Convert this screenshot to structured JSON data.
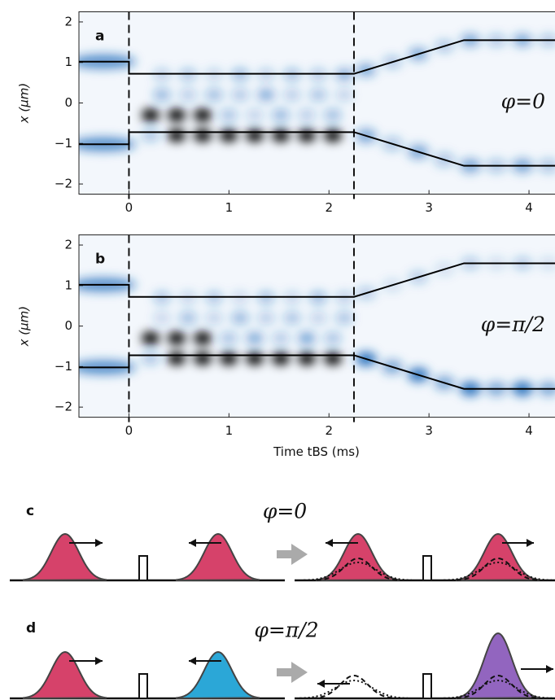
{
  "chart_data": [
    {
      "type": "line",
      "panel_label": "a",
      "annotation": "φ=0",
      "ylabel": "x (μm)",
      "x": [
        -0.5,
        0,
        0,
        2.25,
        3.35,
        4.26
      ],
      "series": [
        {
          "color": "#000000",
          "values": [
            1.02,
            1.02,
            0.72,
            0.72,
            1.55,
            1.55
          ]
        },
        {
          "color": "#000000",
          "values": [
            -1.02,
            -1.02,
            -0.72,
            -0.72,
            -1.55,
            -1.55
          ]
        }
      ],
      "vlines": [
        0,
        2.25
      ],
      "xlim": [
        -0.5,
        4.26
      ],
      "ylim": [
        -2.25,
        2.25
      ],
      "xticks": [
        0,
        1,
        2,
        3,
        4
      ],
      "yticks": [
        {
          "value": -2,
          "label": "−2"
        },
        {
          "value": -1,
          "label": "−1"
        },
        0,
        1,
        2
      ]
    },
    {
      "type": "line",
      "panel_label": "b",
      "annotation": "φ=π/2",
      "ylabel": "x (μm)",
      "xlabel": "Time tBS (ms)",
      "x": [
        -0.5,
        0,
        0,
        2.25,
        3.35,
        4.26
      ],
      "series": [
        {
          "color": "#000000",
          "values": [
            1.02,
            1.02,
            0.72,
            0.72,
            1.55,
            1.55
          ]
        },
        {
          "color": "#000000",
          "values": [
            -1.02,
            -1.02,
            -0.72,
            -0.72,
            -1.55,
            -1.55
          ]
        }
      ],
      "vlines": [
        0,
        2.25
      ],
      "xlim": [
        -0.5,
        4.26
      ],
      "ylim": [
        -2.25,
        2.25
      ],
      "xticks": [
        0,
        1,
        2,
        3,
        4
      ],
      "yticks": [
        {
          "value": -2,
          "label": "−2"
        },
        {
          "value": -1,
          "label": "−1"
        },
        0,
        1,
        2
      ]
    }
  ],
  "diagrams": [
    {
      "label": "c",
      "phase": "φ=0"
    },
    {
      "label": "d",
      "phase": "φ=π/2"
    }
  ]
}
